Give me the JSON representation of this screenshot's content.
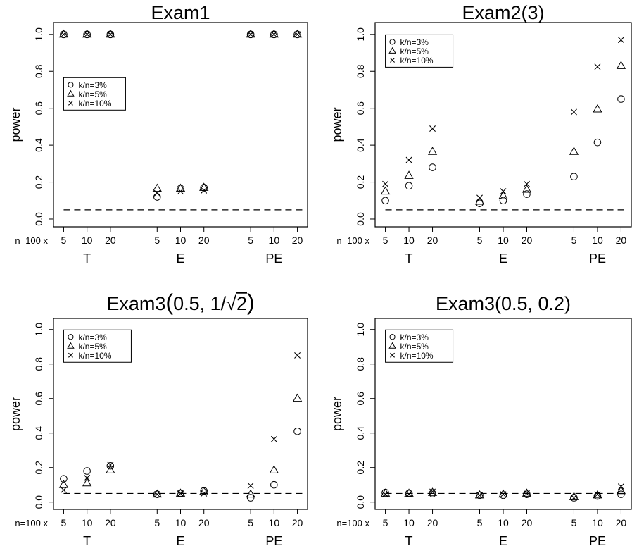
{
  "figure": {
    "ylabel": "power",
    "x_prefix": "n=100 x",
    "legend": [
      {
        "marker": "circle",
        "label": "k/n=3%"
      },
      {
        "marker": "triangle",
        "label": "k/n=5%"
      },
      {
        "marker": "cross",
        "label": "k/n=10%"
      }
    ],
    "y_ticks": [
      "0.0",
      "0.2",
      "0.4",
      "0.6",
      "0.8",
      "1.0"
    ],
    "group_labels": [
      "T",
      "E",
      "PE"
    ],
    "sub_ticks": [
      "5",
      "10",
      "20"
    ]
  },
  "chart_data": [
    {
      "type": "scatter",
      "title_text": "Exam1",
      "legend_position": "top-left",
      "ylim": [
        0,
        1
      ],
      "reference_line": 0.05,
      "categories": [
        [
          "T",
          "5"
        ],
        [
          "T",
          "10"
        ],
        [
          "T",
          "20"
        ],
        [
          "E",
          "5"
        ],
        [
          "E",
          "10"
        ],
        [
          "E",
          "20"
        ],
        [
          "PE",
          "5"
        ],
        [
          "PE",
          "10"
        ],
        [
          "PE",
          "20"
        ]
      ],
      "series": [
        {
          "name": "k/n=3%",
          "marker": "circle",
          "values": [
            1.0,
            1.0,
            1.0,
            0.12,
            0.165,
            0.17,
            1.0,
            1.0,
            1.0
          ]
        },
        {
          "name": "k/n=5%",
          "marker": "triangle",
          "values": [
            1.0,
            1.0,
            1.0,
            0.165,
            0.165,
            0.17,
            1.0,
            1.0,
            1.0
          ]
        },
        {
          "name": "k/n=10%",
          "marker": "cross",
          "values": [
            1.0,
            1.0,
            1.0,
            0.14,
            0.15,
            0.155,
            1.0,
            1.0,
            1.0
          ]
        }
      ]
    },
    {
      "type": "scatter",
      "title_text": "Exam2(3)",
      "legend_position": "top-left",
      "ylim": [
        0,
        1
      ],
      "reference_line": 0.05,
      "categories": [
        [
          "T",
          "5"
        ],
        [
          "T",
          "10"
        ],
        [
          "T",
          "20"
        ],
        [
          "E",
          "5"
        ],
        [
          "E",
          "10"
        ],
        [
          "E",
          "20"
        ],
        [
          "PE",
          "5"
        ],
        [
          "PE",
          "10"
        ],
        [
          "PE",
          "20"
        ]
      ],
      "series": [
        {
          "name": "k/n=3%",
          "marker": "circle",
          "values": [
            0.1,
            0.18,
            0.28,
            0.085,
            0.1,
            0.135,
            0.23,
            0.415,
            0.65
          ]
        },
        {
          "name": "k/n=5%",
          "marker": "triangle",
          "values": [
            0.15,
            0.235,
            0.365,
            0.095,
            0.125,
            0.16,
            0.365,
            0.595,
            0.83
          ]
        },
        {
          "name": "k/n=10%",
          "marker": "cross",
          "values": [
            0.19,
            0.32,
            0.49,
            0.115,
            0.15,
            0.19,
            0.58,
            0.825,
            0.97
          ]
        }
      ]
    },
    {
      "type": "scatter",
      "title_text": "Exam3(0.5, 1/√2)",
      "title_parts": {
        "prefix": "Exam3",
        "open": "(",
        "body": "0.5, 1/",
        "radicand": "2",
        "close": ")"
      },
      "legend_position": "top-left",
      "ylim": [
        0,
        1
      ],
      "reference_line": 0.05,
      "categories": [
        [
          "T",
          "5"
        ],
        [
          "T",
          "10"
        ],
        [
          "T",
          "20"
        ],
        [
          "E",
          "5"
        ],
        [
          "E",
          "10"
        ],
        [
          "E",
          "20"
        ],
        [
          "PE",
          "5"
        ],
        [
          "PE",
          "10"
        ],
        [
          "PE",
          "20"
        ]
      ],
      "series": [
        {
          "name": "k/n=3%",
          "marker": "circle",
          "values": [
            0.135,
            0.18,
            0.21,
            0.045,
            0.05,
            0.065,
            0.025,
            0.1,
            0.41
          ]
        },
        {
          "name": "k/n=5%",
          "marker": "triangle",
          "values": [
            0.1,
            0.11,
            0.185,
            0.045,
            0.05,
            0.06,
            0.045,
            0.185,
            0.6
          ]
        },
        {
          "name": "k/n=10%",
          "marker": "cross",
          "values": [
            0.07,
            0.14,
            0.215,
            0.045,
            0.05,
            0.05,
            0.095,
            0.365,
            0.85
          ]
        }
      ]
    },
    {
      "type": "scatter",
      "title_text": "Exam3(0.5, 0.2)",
      "legend_position": "top-left",
      "ylim": [
        0,
        1
      ],
      "reference_line": 0.05,
      "categories": [
        [
          "T",
          "5"
        ],
        [
          "T",
          "10"
        ],
        [
          "T",
          "20"
        ],
        [
          "E",
          "5"
        ],
        [
          "E",
          "10"
        ],
        [
          "E",
          "20"
        ],
        [
          "PE",
          "5"
        ],
        [
          "PE",
          "10"
        ],
        [
          "PE",
          "20"
        ]
      ],
      "series": [
        {
          "name": "k/n=3%",
          "marker": "circle",
          "values": [
            0.055,
            0.05,
            0.05,
            0.04,
            0.04,
            0.045,
            0.025,
            0.035,
            0.045
          ]
        },
        {
          "name": "k/n=5%",
          "marker": "triangle",
          "values": [
            0.05,
            0.05,
            0.055,
            0.04,
            0.045,
            0.05,
            0.03,
            0.04,
            0.065
          ]
        },
        {
          "name": "k/n=10%",
          "marker": "cross",
          "values": [
            0.045,
            0.045,
            0.06,
            0.04,
            0.045,
            0.05,
            0.025,
            0.045,
            0.09
          ]
        }
      ]
    }
  ]
}
